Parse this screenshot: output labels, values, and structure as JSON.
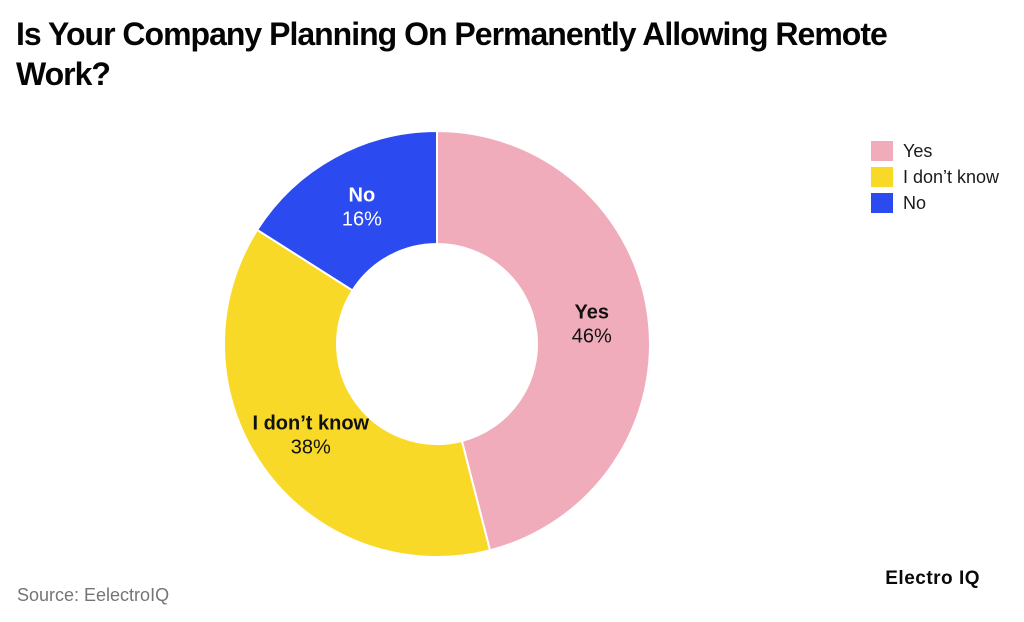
{
  "title_lines": [
    "Is Your Company Planning On Permanently Allowing Remote",
    "Work?"
  ],
  "source": "Source: EelectroIQ",
  "brand": "Electro IQ",
  "chart_data": {
    "type": "pie",
    "style": "donut",
    "title": "Is Your Company Planning On Permanently Allowing Remote Work?",
    "direction": "clockwise",
    "start_angle": "12-o-clock",
    "inner_radius_ratio": 0.47,
    "legend_position": "right",
    "background_color": "#ffffff",
    "separator_color": "#ffffff",
    "slices": [
      {
        "label": "Yes",
        "value": 46,
        "display": "46%",
        "color": "#F1ACBB",
        "label_color": "#111111"
      },
      {
        "label": "I don’t know",
        "value": 38,
        "display": "38%",
        "color": "#F9D928",
        "label_color": "#111111"
      },
      {
        "label": "No",
        "value": 16,
        "display": "16%",
        "color": "#2B4AEF",
        "label_color": "#ffffff"
      }
    ]
  }
}
